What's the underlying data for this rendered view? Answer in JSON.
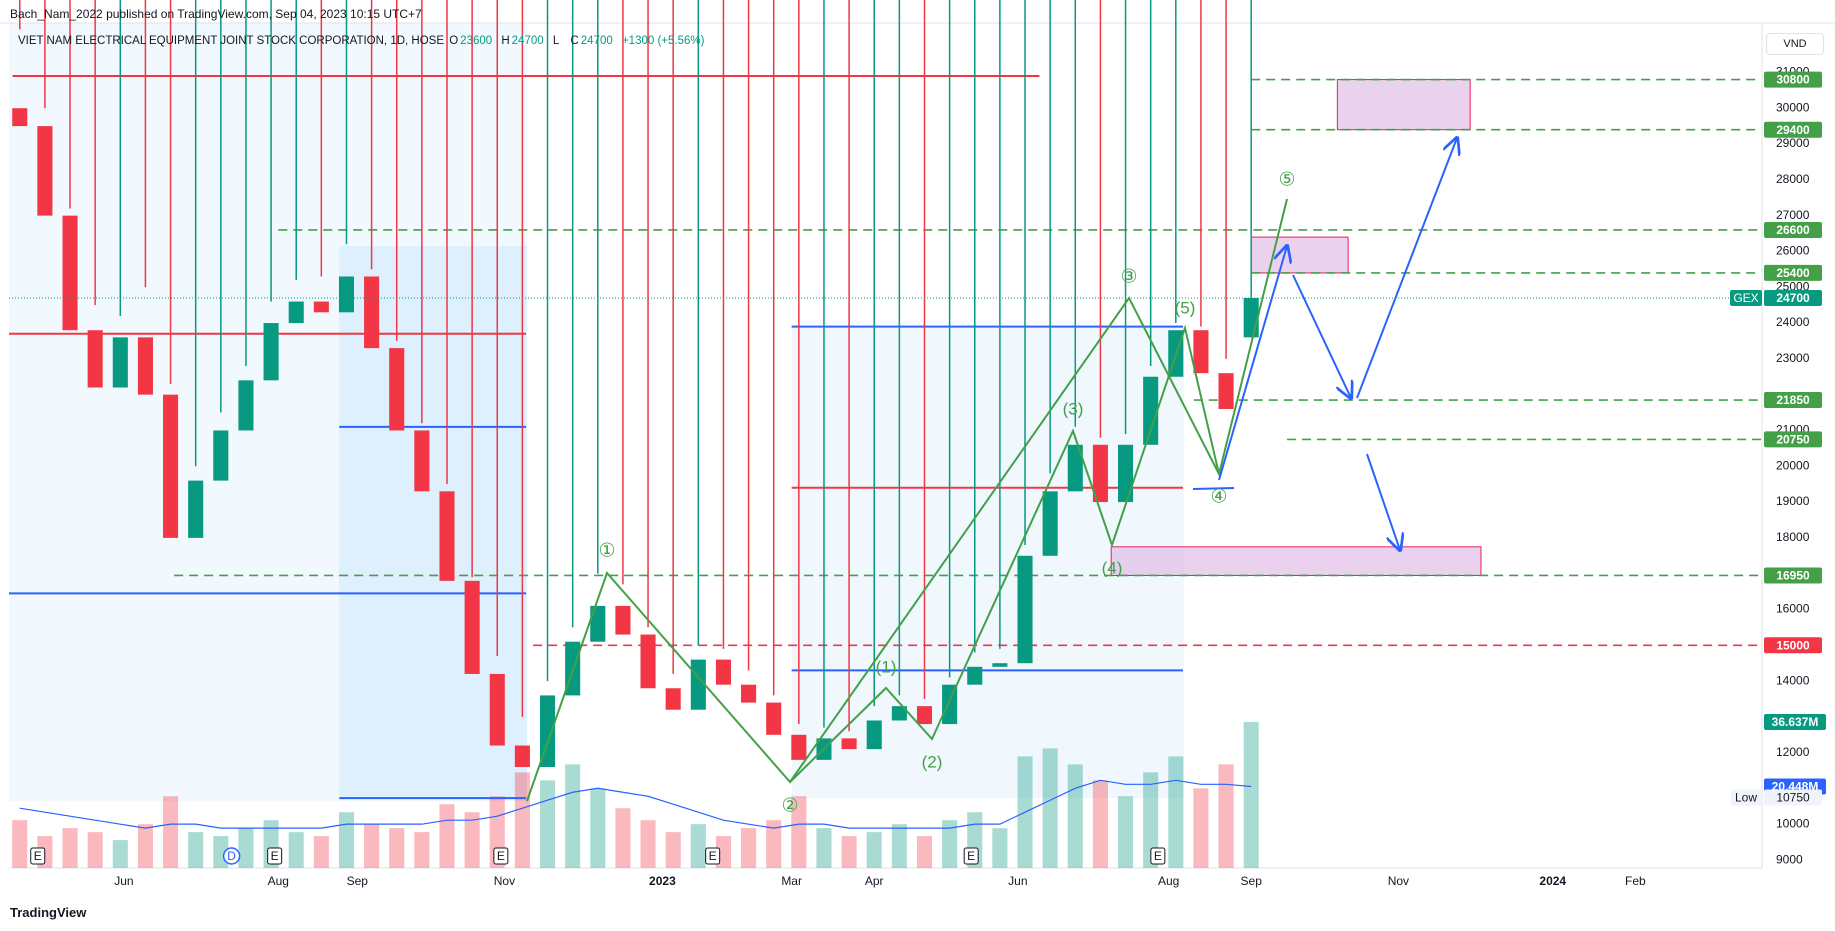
{
  "header": "Bach_Nam_2022 published on TradingView.com, Sep 04, 2023 10:15 UTC+7",
  "currency": "VND",
  "footer": "TradingView",
  "wave_labels": [
    "①",
    "②",
    "③",
    "④",
    "⑤",
    "(1)",
    "(2)",
    "(3)",
    "(4)",
    "(5)"
  ],
  "chart_data": {
    "type": "candlestick",
    "title": "VIET NAM ELECTRICAL EQUIPMENT JOINT STOCK CORPORATION, 1D, HOSE",
    "ohlc_labels": [
      "O",
      "H",
      "L",
      "C"
    ],
    "change": "+1300 (+5.56%)",
    "symbol_tag": "GEX",
    "up_color": "#089981",
    "down_color": "#f23645",
    "x": [
      3,
      10,
      17,
      24,
      31,
      38,
      45,
      52,
      59,
      66,
      73,
      80,
      87,
      94,
      101,
      108,
      115,
      122,
      129,
      136,
      143,
      150,
      157,
      164,
      171,
      178,
      185,
      192,
      199,
      206,
      213,
      220,
      227,
      234,
      241,
      248,
      255,
      262,
      269,
      276,
      283,
      290,
      297,
      304,
      311,
      318,
      325,
      332,
      339,
      346
    ],
    "open": [
      30000,
      29500,
      27000,
      23800,
      22200,
      23600,
      22000,
      18000,
      19600,
      21000,
      22400,
      24000,
      24600,
      24300,
      25300,
      23300,
      21000,
      19300,
      16800,
      14200,
      12200,
      11600,
      13600,
      15100,
      16100,
      15300,
      13800,
      13200,
      14600,
      13900,
      13400,
      12500,
      11800,
      12400,
      12100,
      12900,
      13300,
      12800,
      13900,
      14400,
      14500,
      17500,
      19300,
      20600,
      19000,
      20600,
      22500,
      23800,
      22600,
      23600
    ],
    "high": [
      32200,
      30000,
      27200,
      24500,
      24200,
      25000,
      22300,
      20000,
      21500,
      22800,
      24600,
      25200,
      25300,
      26200,
      25500,
      23500,
      21200,
      19500,
      16900,
      14700,
      13000,
      14000,
      15500,
      17000,
      16700,
      15500,
      14200,
      15000,
      14900,
      14300,
      13600,
      12800,
      12700,
      12600,
      13300,
      13600,
      13500,
      14100,
      14800,
      14900,
      17800,
      19800,
      21100,
      20800,
      20900,
      22800,
      24000,
      23900,
      23000,
      24700
    ],
    "low": {
      "label": "Low",
      "value": 10750
    },
    "close": [
      29500,
      27000,
      23800,
      22200,
      23600,
      22000,
      18000,
      19600,
      21000,
      22400,
      24000,
      24600,
      24300,
      25300,
      23300,
      21000,
      19300,
      16800,
      14200,
      12200,
      11600,
      13600,
      15100,
      16100,
      15300,
      13800,
      13200,
      14600,
      13900,
      13400,
      12500,
      11800,
      12400,
      12100,
      12900,
      13300,
      12800,
      13900,
      14400,
      14500,
      17500,
      19300,
      20600,
      19000,
      20600,
      22500,
      23800,
      22600,
      21600,
      24700
    ],
    "volume": [
      12,
      8,
      10,
      9,
      7,
      11,
      18,
      9,
      8,
      10,
      12,
      9,
      8,
      14,
      11,
      10,
      9,
      16,
      14,
      18,
      24,
      22,
      26,
      20,
      15,
      12,
      9,
      11,
      8,
      10,
      12,
      18,
      10,
      8,
      9,
      11,
      8,
      12,
      14,
      10,
      28,
      30,
      26,
      22,
      18,
      24,
      28,
      20,
      26,
      36.637
    ],
    "volume_ma": [
      15,
      14,
      13,
      12,
      11,
      10,
      11,
      11,
      10,
      10,
      10,
      10,
      10,
      11,
      11,
      11,
      11,
      12,
      12,
      13,
      15,
      17,
      19,
      20,
      19,
      18,
      16,
      14,
      12,
      11,
      10,
      11,
      11,
      10,
      10,
      10,
      10,
      10,
      11,
      11,
      14,
      17,
      20,
      22,
      21,
      21,
      22,
      21,
      21,
      20.448
    ],
    "volume_ma_color": "#2962ff",
    "last_volume_label": "36.637M",
    "last_ma_label": "20.448M",
    "xlim": [
      0,
      488
    ],
    "ylim": [
      8780,
      32380
    ],
    "y2lim": [
      0,
      212
    ],
    "xticks": [
      {
        "value": 32,
        "label": "Jun"
      },
      {
        "value": 75,
        "label": "Aug"
      },
      {
        "value": 97,
        "label": "Sep"
      },
      {
        "value": 138,
        "label": "Nov"
      },
      {
        "value": 182,
        "label": "2023"
      },
      {
        "value": 218,
        "label": "Mar"
      },
      {
        "value": 241,
        "label": "Apr"
      },
      {
        "value": 281,
        "label": "Jun"
      },
      {
        "value": 323,
        "label": "Aug"
      },
      {
        "value": 346,
        "label": "Sep"
      },
      {
        "value": 387,
        "label": "Nov"
      },
      {
        "value": 430,
        "label": "2024"
      },
      {
        "value": 453,
        "label": "Feb"
      }
    ],
    "yticks": [
      9000,
      10000,
      12000,
      14000,
      16000,
      18000,
      19000,
      20000,
      21000,
      23000,
      24000,
      25000,
      26000,
      27000,
      28000,
      29000,
      30000,
      31000
    ],
    "grid": false,
    "levels": [
      {
        "value": 30800,
        "color": "#43a047",
        "x_from": 346
      },
      {
        "value": 29400,
        "color": "#43a047",
        "x_from": 346
      },
      {
        "value": 26600,
        "color": "#43a047",
        "x_from": 75
      },
      {
        "value": 25400,
        "color": "#43a047",
        "x_from": 346
      },
      {
        "value": 21850,
        "color": "#43a047",
        "x_from": 330
      },
      {
        "value": 20750,
        "color": "#43a047",
        "x_from": 356
      },
      {
        "value": 16950,
        "color": "#43a047",
        "x_from": 46
      },
      {
        "value": 15000,
        "color": "#f23645",
        "x_from": 146
      }
    ],
    "lines": [
      {
        "value": 30900,
        "x": [
          1,
          287
        ],
        "color": "#f23645"
      },
      {
        "value": 23700,
        "x": [
          0,
          144
        ],
        "color": "#f23645"
      },
      {
        "value": 21100,
        "x": [
          92,
          144
        ],
        "color": "#2962ff"
      },
      {
        "value": 16450,
        "x": [
          0,
          144
        ],
        "color": "#2962ff"
      },
      {
        "value": 10730,
        "x": [
          92,
          144
        ],
        "color": "#2962ff"
      },
      {
        "value": 23900,
        "x": [
          218,
          327
        ],
        "color": "#2962ff"
      },
      {
        "value": 19400,
        "x": [
          218,
          327
        ],
        "color": "#f23645"
      },
      {
        "value": 14300,
        "x": [
          218,
          327
        ],
        "color": "#2962ff"
      }
    ],
    "zones": [
      {
        "y": [
          29400,
          30800
        ],
        "x": [
          370,
          407
        ]
      },
      {
        "y": [
          25400,
          26400
        ],
        "x": [
          346,
          373
        ]
      },
      {
        "y": [
          16950,
          17750
        ],
        "x": [
          307,
          410
        ]
      }
    ],
    "events": [
      {
        "x": 8,
        "label": "E"
      },
      {
        "x": 62,
        "label": "D"
      },
      {
        "x": 74,
        "label": "E"
      },
      {
        "x": 137,
        "label": "E"
      },
      {
        "x": 196,
        "label": "E"
      },
      {
        "x": 268,
        "label": "E"
      },
      {
        "x": 320,
        "label": "E"
      }
    ]
  }
}
